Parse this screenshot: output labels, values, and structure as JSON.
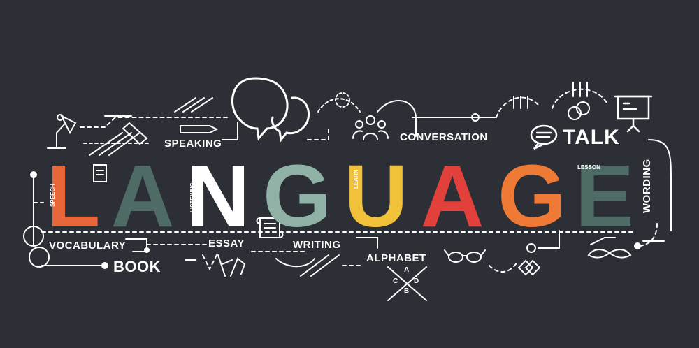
{
  "title": {
    "letters": [
      "L",
      "A",
      "N",
      "G",
      "U",
      "A",
      "G",
      "E"
    ],
    "colors": [
      "#e8673a",
      "#4f6b66",
      "#ffffff",
      "#8fb1a6",
      "#f2c13a",
      "#e2403a",
      "#ef7a36",
      "#4f6b66"
    ]
  },
  "labels": {
    "speaking": "SPEAKING",
    "conversation": "CONVERSATION",
    "talk": "TALK",
    "vocabulary": "VOCABULARY",
    "book": "BOOK",
    "essay": "ESSAY",
    "writing": "WRITING",
    "alphabet": "ALPHABET",
    "wording": "WORDING"
  },
  "inner_labels": {
    "speech": "SPEECH",
    "listening": "LISTENING",
    "learn": "LEARN",
    "lesson": "LESSON"
  },
  "alphabet_letters": [
    "A",
    "C",
    "D",
    "B"
  ],
  "icons": [
    "desk-lamp-icon",
    "speech-bubbles-icon",
    "people-group-icon",
    "chat-bubble-icon",
    "presentation-board-icon",
    "pen-icon",
    "ribbon-icon",
    "document-icon",
    "scroll-icon",
    "glasses-icon",
    "mustache-icon",
    "diamond-icon",
    "rings-icon",
    "gear-icon"
  ]
}
